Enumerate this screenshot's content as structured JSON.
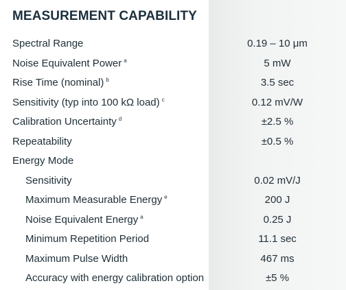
{
  "section_title": "MEASUREMENT CAPABILITY",
  "rows": [
    {
      "label": "Spectral Range",
      "note": "",
      "value": "0.19 – 10 μm",
      "indent": false
    },
    {
      "label": "Noise Equivalent Power",
      "note": "a",
      "value": "5 mW",
      "indent": false
    },
    {
      "label": "Rise Time (nominal)",
      "note": "b",
      "value": "3.5 sec",
      "indent": false
    },
    {
      "label": "Sensitivity (typ into 100 kΩ load)",
      "note": "c",
      "value": "0.12 mV/W",
      "indent": false
    },
    {
      "label": "Calibration Uncertainty",
      "note": "d",
      "value": "±2.5 %",
      "indent": false
    },
    {
      "label": "Repeatability",
      "note": "",
      "value": "±0.5 %",
      "indent": false
    },
    {
      "label": "Energy Mode",
      "note": "",
      "value": "",
      "indent": false
    },
    {
      "label": "Sensitivity",
      "note": "",
      "value": "0.02 mV/J",
      "indent": true
    },
    {
      "label": "Maximum Measurable Energy",
      "note": "e",
      "value": "200 J",
      "indent": true
    },
    {
      "label": "Noise Equivalent Energy",
      "note": "a",
      "value": "0.25 J",
      "indent": true
    },
    {
      "label": "Minimum Repetition Period",
      "note": "",
      "value": "11.1 sec",
      "indent": true
    },
    {
      "label": "Maximum Pulse Width",
      "note": "",
      "value": "467 ms",
      "indent": true
    },
    {
      "label": "Accuracy with energy calibration option",
      "note": "",
      "value": "±5 %",
      "indent": true
    }
  ]
}
